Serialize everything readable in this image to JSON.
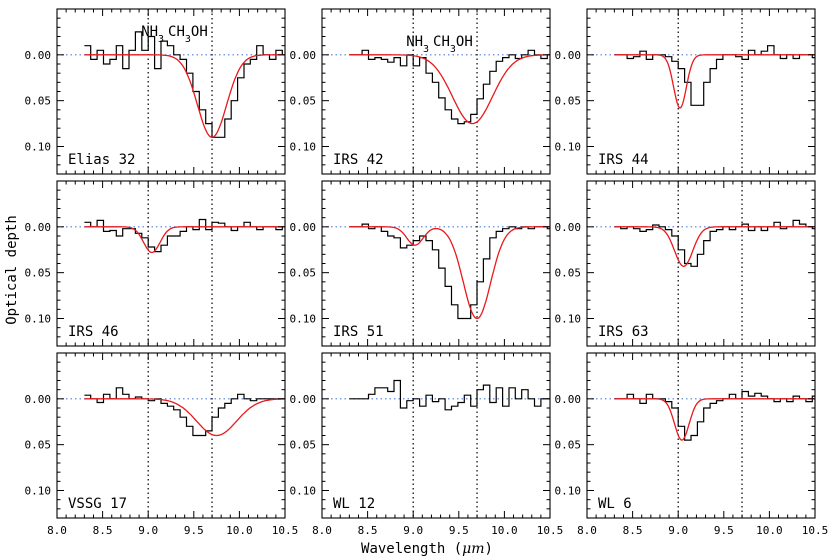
{
  "chart_data": {
    "type": "line",
    "ylabel": "Optical depth",
    "xlabel_main": "Wavelength (",
    "xlabel_unit": "μm",
    "xlabel_close": ")",
    "xlim": [
      8.0,
      10.5
    ],
    "ylim_top": -0.05,
    "ylim_bottom": 0.13,
    "y_inverted": true,
    "xticks": [
      "8.0",
      "8.5",
      "9.0",
      "9.5",
      "10.0",
      "10.5"
    ],
    "yticks": [
      "0.00",
      "0.05",
      "0.10"
    ],
    "dotted_markers": [
      9.0,
      9.7
    ],
    "annotations": {
      "nh3_main": "NH",
      "nh3_sub": "3",
      "ch3oh_a": "CH",
      "ch3oh_sub": "3",
      "ch3oh_b": "OH"
    },
    "colors": {
      "data": "#000000",
      "fit": "#e8191c",
      "baseline": "#4f7fe0",
      "markers": "#000000"
    },
    "panels": [
      {
        "name": "Elias 32",
        "depths": [
          -0.01,
          0.005,
          -0.005,
          0.01,
          0.005,
          -0.01,
          0.015,
          -0.005,
          -0.025,
          -0.005,
          -0.02,
          0.015,
          -0.015,
          -0.01,
          0.0,
          0.005,
          0.02,
          0.04,
          0.06,
          0.075,
          0.09,
          0.09,
          0.07,
          0.05,
          0.025,
          0.01,
          0.005,
          -0.01,
          0.0,
          0.005,
          -0.005,
          0.0
        ],
        "fit": [
          {
            "c": 9.7,
            "a": 0.09,
            "s": 0.16
          }
        ]
      },
      {
        "name": "IRS 42",
        "depths": [
          0.0,
          0.0,
          -0.005,
          0.005,
          0.003,
          0.005,
          0.008,
          0.003,
          0.012,
          0.0,
          0.012,
          0.003,
          0.02,
          0.03,
          0.047,
          0.06,
          0.07,
          0.075,
          0.073,
          0.065,
          0.048,
          0.032,
          0.018,
          0.007,
          0.003,
          0.0,
          0.004,
          0.0,
          -0.005,
          0.0,
          0.004,
          0.0
        ],
        "fit": [
          {
            "c": 9.65,
            "a": 0.075,
            "s": 0.22
          }
        ]
      },
      {
        "name": "IRS 44",
        "depths": [
          0.0,
          0.0,
          0.004,
          0.002,
          -0.004,
          0.005,
          0.0,
          0.0,
          0.002,
          0.007,
          0.015,
          0.03,
          0.055,
          0.055,
          0.03,
          0.015,
          0.005,
          0.0,
          0.0,
          0.002,
          0.005,
          -0.005,
          0.0,
          -0.004,
          -0.01,
          0.0,
          0.004,
          0.0,
          0.004,
          0.0,
          0.0,
          0.003
        ],
        "fit": [
          {
            "c": 9.02,
            "a": 0.058,
            "s": 0.07
          }
        ]
      },
      {
        "name": "IRS 46",
        "depths": [
          -0.005,
          0.0,
          -0.007,
          0.005,
          0.004,
          0.01,
          0.002,
          0.002,
          0.007,
          0.012,
          0.022,
          0.027,
          0.02,
          0.01,
          0.01,
          0.005,
          0.0,
          0.003,
          -0.008,
          0.003,
          -0.005,
          -0.004,
          0.0,
          0.004,
          0.0,
          -0.005,
          0.0,
          0.003,
          0.0,
          0.0,
          0.003,
          0.0
        ],
        "fit": [
          {
            "c": 9.04,
            "a": 0.028,
            "s": 0.09
          }
        ]
      },
      {
        "name": "IRS 51",
        "depths": [
          0.0,
          0.0,
          -0.003,
          0.002,
          0.0,
          0.005,
          0.01,
          0.012,
          0.023,
          0.02,
          0.015,
          0.01,
          0.015,
          0.025,
          0.045,
          0.065,
          0.085,
          0.1,
          0.1,
          0.085,
          0.06,
          0.035,
          0.012,
          0.005,
          0.002,
          0.0,
          0.002,
          0.0,
          0.002,
          0.0,
          0.0,
          0.002
        ],
        "fit": [
          {
            "c": 9.02,
            "a": 0.02,
            "s": 0.09
          },
          {
            "c": 9.7,
            "a": 0.1,
            "s": 0.15
          }
        ]
      },
      {
        "name": "IRS 63",
        "depths": [
          0.0,
          0.002,
          0.0,
          0.002,
          0.005,
          0.003,
          -0.002,
          0.0,
          0.003,
          0.01,
          0.025,
          0.04,
          0.043,
          0.03,
          0.015,
          0.005,
          0.003,
          0.0,
          0.003,
          0.0,
          -0.003,
          0.004,
          0.0,
          0.004,
          0.0,
          -0.005,
          0.002,
          0.0,
          -0.007,
          -0.003,
          0.0,
          0.002
        ],
        "fit": [
          {
            "c": 9.06,
            "a": 0.043,
            "s": 0.1
          }
        ]
      },
      {
        "name": "VSSG 17",
        "depths": [
          -0.004,
          0.0,
          0.004,
          -0.005,
          0.0,
          -0.012,
          -0.005,
          0.0,
          -0.002,
          0.0,
          0.002,
          0.0,
          0.005,
          0.008,
          0.012,
          0.02,
          0.03,
          0.04,
          0.04,
          0.035,
          0.02,
          0.01,
          0.005,
          0.0,
          -0.005,
          0.0,
          0.002,
          0.0,
          0.0,
          0.0,
          0.0,
          0.0
        ],
        "fit": [
          {
            "c": 9.75,
            "a": 0.04,
            "s": 0.22
          }
        ]
      },
      {
        "name": "WL 12",
        "depths": [
          0.0,
          0.0,
          0.0,
          -0.005,
          -0.012,
          -0.012,
          -0.008,
          -0.02,
          0.01,
          0.002,
          0.0,
          0.008,
          -0.004,
          0.003,
          0.0,
          0.012,
          0.008,
          0.004,
          -0.004,
          0.008,
          -0.01,
          -0.015,
          0.004,
          -0.012,
          0.008,
          -0.012,
          0.0,
          -0.01,
          0.0,
          0.008,
          0.0,
          0.0
        ],
        "fit": []
      },
      {
        "name": "WL 6",
        "depths": [
          0.0,
          0.0,
          -0.005,
          0.0,
          0.005,
          -0.005,
          0.0,
          0.0,
          0.003,
          0.01,
          0.03,
          0.045,
          0.04,
          0.025,
          0.01,
          0.005,
          0.002,
          0.0,
          -0.005,
          0.0,
          -0.008,
          -0.003,
          -0.006,
          -0.003,
          0.0,
          0.003,
          0.0,
          0.003,
          -0.003,
          0.0,
          0.003,
          -0.003
        ],
        "fit": [
          {
            "c": 9.04,
            "a": 0.045,
            "s": 0.08
          }
        ]
      }
    ]
  }
}
